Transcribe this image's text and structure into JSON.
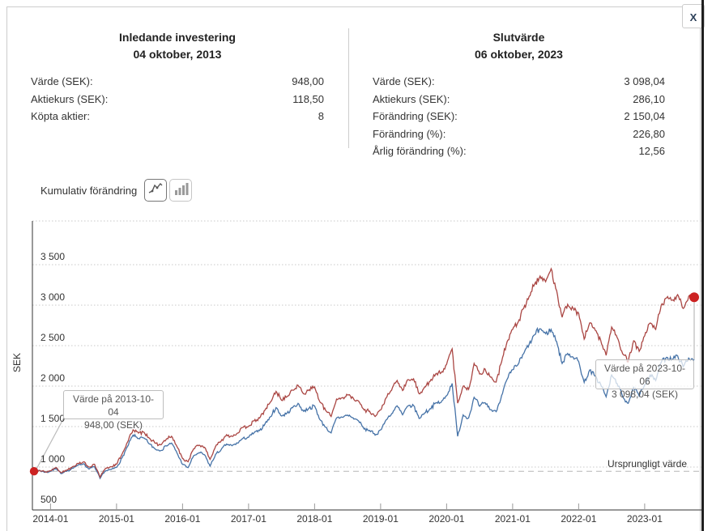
{
  "close_label": "X",
  "summary_left": {
    "title": "Inledande investering",
    "date": "04 oktober, 2013",
    "rows": [
      {
        "label": "Värde (SEK):",
        "value": "948,00"
      },
      {
        "label": "Aktiekurs (SEK):",
        "value": "118,50"
      },
      {
        "label": "Köpta aktier:",
        "value": "8"
      }
    ]
  },
  "summary_right": {
    "title": "Slutvärde",
    "date": "06 oktober, 2023",
    "rows": [
      {
        "label": "Värde (SEK):",
        "value": "3 098,04"
      },
      {
        "label": "Aktiekurs (SEK):",
        "value": "286,10"
      },
      {
        "label": "Förändring (SEK):",
        "value": "2 150,04"
      },
      {
        "label": "Förändring (%):",
        "value": "226,80"
      },
      {
        "label": "Årlig förändring (%):",
        "value": "12,56"
      }
    ]
  },
  "controls": {
    "label": "Kumulativ förändring",
    "buttons": [
      {
        "name": "line-chart-view",
        "selected": true
      },
      {
        "name": "bar-chart-view",
        "selected": false
      }
    ]
  },
  "chart_data": {
    "type": "line",
    "ylabel": "SEK",
    "grid": "dotted",
    "legend": "none",
    "ylim": [
      500,
      4040
    ],
    "x_range": {
      "start": "2013-10-04",
      "end": "2023-10-06"
    },
    "y_ticks": [
      {
        "value": 3500,
        "label": "3 500"
      },
      {
        "value": 3000,
        "label": "3 000"
      },
      {
        "value": 2500,
        "label": "2 500"
      },
      {
        "value": 2000,
        "label": "2 000"
      },
      {
        "value": 1500,
        "label": "1 500"
      },
      {
        "value": 1000,
        "label": "1 000"
      },
      {
        "value": 500,
        "label": "500"
      }
    ],
    "x_tick_labels": [
      "2014-01",
      "2015-01",
      "2016-01",
      "2017-01",
      "2018-01",
      "2019-01",
      "2020-01",
      "2021-01",
      "2022-01",
      "2023-01"
    ],
    "baseline": {
      "value": 948,
      "label": "Ursprungligt värde"
    },
    "start_month": "2013-10",
    "interval": "monthly",
    "series": [
      {
        "id": "total-value-red",
        "color": "#AA4643",
        "values": [
          948,
          960,
          940,
          955,
          995,
          930,
          965,
          1005,
          1045,
          1065,
          1000,
          1035,
          875,
          985,
          1005,
          1035,
          1160,
          1310,
          1460,
          1420,
          1430,
          1355,
          1295,
          1275,
          1340,
          1380,
          1250,
          1105,
          1065,
          1225,
          1270,
          1245,
          1095,
          1255,
          1320,
          1400,
          1380,
          1420,
          1490,
          1505,
          1570,
          1605,
          1705,
          1805,
          1935,
          1825,
          1870,
          1950,
          2010,
          1905,
          1955,
          1990,
          1800,
          1700,
          1625,
          1840,
          1855,
          1890,
          1855,
          1815,
          1705,
          1690,
          1625,
          1705,
          1855,
          1950,
          2070,
          1945,
          2080,
          2090,
          1905,
          1990,
          2060,
          2150,
          2165,
          2270,
          2460,
          1790,
          2000,
          1960,
          2280,
          2150,
          2210,
          2110,
          2050,
          2300,
          2550,
          2700,
          2790,
          2960,
          3110,
          3260,
          3360,
          3290,
          3450,
          3180,
          2850,
          3010,
          2960,
          2900,
          2580,
          2780,
          2690,
          2570,
          2380,
          2730,
          2600,
          2400,
          2300,
          2560,
          2430,
          2620,
          2780,
          2700,
          3000,
          3090,
          3060,
          3130,
          2960,
          3110,
          3098.04
        ]
      },
      {
        "id": "share-price-blue",
        "color": "#4572A7",
        "values": [
          948,
          958,
          935,
          948,
          985,
          918,
          950,
          987,
          1024,
          1041,
          975,
          1006,
          860,
          953,
          970,
          996,
          1114,
          1255,
          1395,
          1353,
          1359,
          1285,
          1225,
          1202,
          1262,
          1296,
          1171,
          1033,
          993,
          1139,
          1178,
          1152,
          1011,
          1156,
          1213,
          1284,
          1263,
          1297,
          1357,
          1368,
          1424,
          1451,
          1537,
          1622,
          1734,
          1631,
          1667,
          1733,
          1787,
          1689,
          1729,
          1755,
          1583,
          1491,
          1422,
          1607,
          1616,
          1642,
          1608,
          1569,
          1470,
          1453,
          1394,
          1459,
          1583,
          1659,
          1756,
          1646,
          1756,
          1760,
          1600,
          1668,
          1722,
          1792,
          1800,
          1882,
          2033,
          1380,
          1644,
          1606,
          1862,
          1751,
          1795,
          1709,
          1684,
          1885,
          2085,
          2202,
          2269,
          2401,
          2518,
          2634,
          2709,
          2648,
          2700,
          2549,
          2280,
          2403,
          2358,
          2305,
          2046,
          2199,
          2123,
          2023,
          1868,
          2138,
          2031,
          1870,
          1787,
          1984,
          1878,
          2019,
          2137,
          2070,
          2294,
          2356,
          2327,
          2374,
          2239,
          2346,
          2330
        ]
      }
    ],
    "markers": {
      "color": "#CC2222",
      "start": {
        "date": "2013-10-04",
        "value": 948.0
      },
      "end": {
        "date": "2023-10-06",
        "value": 3098.04
      }
    },
    "tooltips": [
      {
        "line1": "Värde på 2013-10-04",
        "line2": "948,00 (SEK)"
      },
      {
        "line1": "Värde på 2023-10-06",
        "line2": "3 098,04 (SEK)"
      }
    ]
  }
}
